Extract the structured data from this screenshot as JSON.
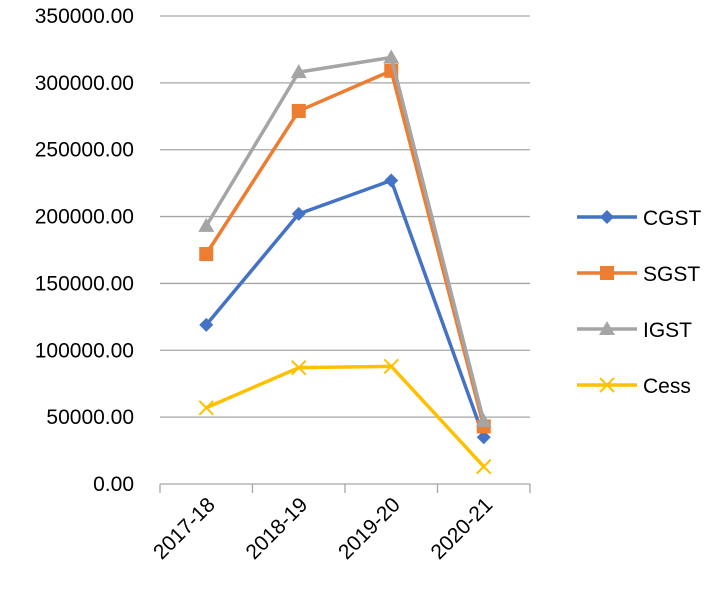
{
  "chart_data": {
    "type": "line",
    "categories": [
      "2017-18",
      "2018-19",
      "2019-20",
      "2020-21"
    ],
    "ylim": [
      0,
      350000
    ],
    "yticks": [
      "0.00",
      "50000.00",
      "100000.00",
      "150000.00",
      "200000.00",
      "250000.00",
      "300000.00",
      "350000.00"
    ],
    "grid": "horizontal",
    "legend_position": "right",
    "series": [
      {
        "name": "CGST",
        "color": "#4472C4",
        "marker": "diamond",
        "values": [
          119000,
          202000,
          227000,
          35000
        ]
      },
      {
        "name": "SGST",
        "color": "#ED7D31",
        "marker": "square",
        "values": [
          172000,
          279000,
          309000,
          43000
        ]
      },
      {
        "name": "IGST",
        "color": "#A5A5A5",
        "marker": "triangle",
        "values": [
          193000,
          308000,
          319000,
          47000
        ]
      },
      {
        "name": "Cess",
        "color": "#FFC000",
        "marker": "x",
        "values": [
          57000,
          87000,
          88000,
          13000
        ]
      }
    ]
  }
}
